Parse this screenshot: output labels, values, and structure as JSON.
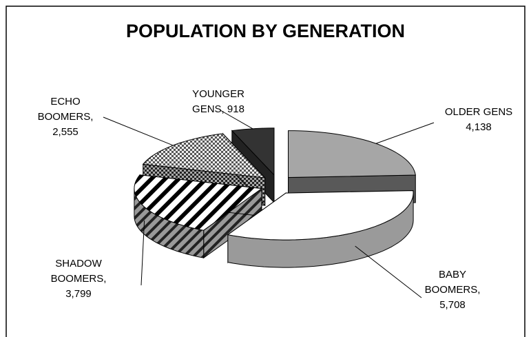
{
  "chart_data": {
    "type": "pie3d",
    "title": "POPULATION BY GENERATION",
    "categories": [
      "OLDER GENS",
      "BABY BOOMERS,",
      "SHADOW BOOMERS,",
      "ECHO BOOMERS,",
      "YOUNGER GENS,"
    ],
    "values": [
      4138,
      5708,
      3799,
      2555,
      918
    ],
    "value_labels": [
      "4,138",
      "5,708",
      "3,799",
      "2,555",
      "918"
    ],
    "colors": [
      "#a6a6a6",
      "#ffffff",
      "url(#diag)",
      "url(#check)",
      "#333333"
    ],
    "side_colors": [
      "#595959",
      "#9a9a9a",
      "url(#diagDark)",
      "url(#checkDark)",
      "#222222"
    ]
  }
}
